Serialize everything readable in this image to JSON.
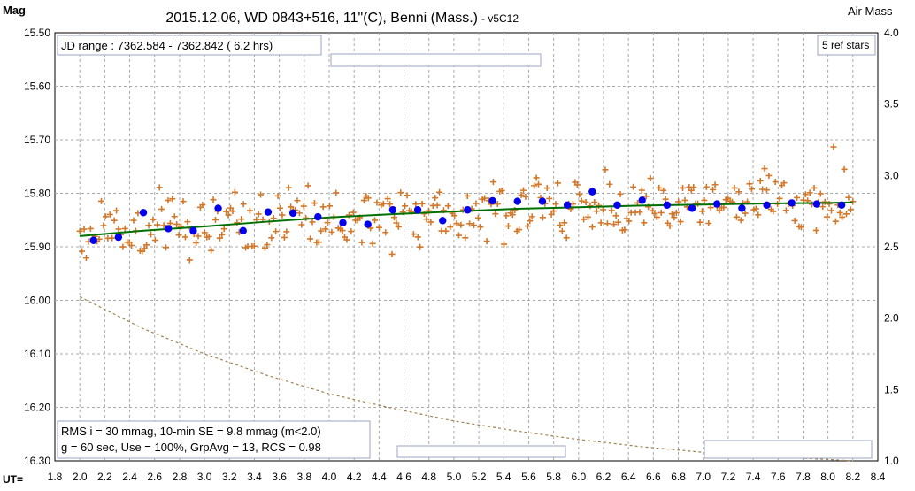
{
  "chart_data": {
    "type": "scatter",
    "title": "2015.12.06, WD 0843+516, 11\"(C), Benni (Mass.)",
    "title_suffix": " - v5C12",
    "ylabel": "Mag",
    "y2label": "Air Mass",
    "xlabel": "UT=",
    "xlim": [
      1.8,
      8.4
    ],
    "ylim": [
      15.5,
      16.3
    ],
    "y_inverted": true,
    "y2lim": [
      1.0,
      4.0
    ],
    "x_ticks": [
      1.8,
      2.0,
      2.2,
      2.4,
      2.6,
      2.8,
      3.0,
      3.2,
      3.4,
      3.6,
      3.8,
      4.0,
      4.2,
      4.4,
      4.6,
      4.8,
      5.0,
      5.2,
      5.4,
      5.6,
      5.8,
      6.0,
      6.2,
      6.4,
      6.6,
      6.8,
      7.0,
      7.2,
      7.4,
      7.6,
      7.8,
      8.0,
      8.2,
      8.4
    ],
    "y_ticks": [
      "15.50",
      "15.60",
      "15.70",
      "15.80",
      "15.90",
      "16.00",
      "16.10",
      "16.20",
      "16.30"
    ],
    "y2_ticks": [
      "4.0",
      "3.5",
      "3.0",
      "2.5",
      "2.0",
      "1.5",
      "1.0"
    ],
    "grid": true,
    "annotations": {
      "jd_range": "JD range : 7362.584 - 7362.842 ( 6.2 hrs)",
      "ref_stars": "5 ref stars",
      "stats_line1": "RMS i = 30 mmag, 10-min SE = 9.8 mmag (m<2.0)",
      "stats_line2": "g = 60 sec, Use = 100%, GrpAvg = 13, RCS = 0.98"
    },
    "series": [
      {
        "type": "group_average",
        "color": "#0000ee",
        "x": [
          2.11,
          2.31,
          2.51,
          2.71,
          2.91,
          3.11,
          3.31,
          3.51,
          3.71,
          3.91,
          4.11,
          4.31,
          4.51,
          4.71,
          4.91,
          5.11,
          5.31,
          5.51,
          5.71,
          5.91,
          6.11,
          6.31,
          6.51,
          6.71,
          6.91,
          7.11,
          7.31,
          7.51,
          7.71,
          7.91,
          8.11
        ],
        "y": [
          15.888,
          15.882,
          15.836,
          15.866,
          15.87,
          15.828,
          15.87,
          15.835,
          15.837,
          15.844,
          15.855,
          15.858,
          15.831,
          15.831,
          15.851,
          15.831,
          15.814,
          15.815,
          15.815,
          15.822,
          15.797,
          15.822,
          15.813,
          15.822,
          15.828,
          15.82,
          15.828,
          15.822,
          15.818,
          15.82,
          15.822
        ]
      },
      {
        "type": "trend",
        "color": "#007000",
        "x": [
          2.0,
          2.5,
          3.0,
          3.5,
          4.0,
          4.5,
          5.0,
          5.5,
          6.0,
          6.5,
          7.0,
          7.5,
          8.0,
          8.2
        ],
        "y": [
          15.88,
          15.87,
          15.862,
          15.853,
          15.845,
          15.839,
          15.834,
          15.829,
          15.826,
          15.823,
          15.821,
          15.819,
          15.818,
          15.817
        ]
      },
      {
        "type": "air_mass",
        "axis": "y2",
        "color": "#a08050",
        "x": [
          2.0,
          2.5,
          3.0,
          3.5,
          4.0,
          4.5,
          5.0,
          5.5,
          6.0,
          6.5,
          7.0,
          7.5,
          8.0,
          8.2
        ],
        "y": [
          2.15,
          1.93,
          1.75,
          1.6,
          1.47,
          1.37,
          1.28,
          1.21,
          1.15,
          1.1,
          1.06,
          1.03,
          1.01,
          1.0
        ]
      }
    ],
    "raw_points": {
      "color": "#d2782a",
      "note_visible_count_approx": 360,
      "x_start": 2.0,
      "x_end": 8.2,
      "count": 360,
      "scatter_sd": 0.03
    }
  }
}
